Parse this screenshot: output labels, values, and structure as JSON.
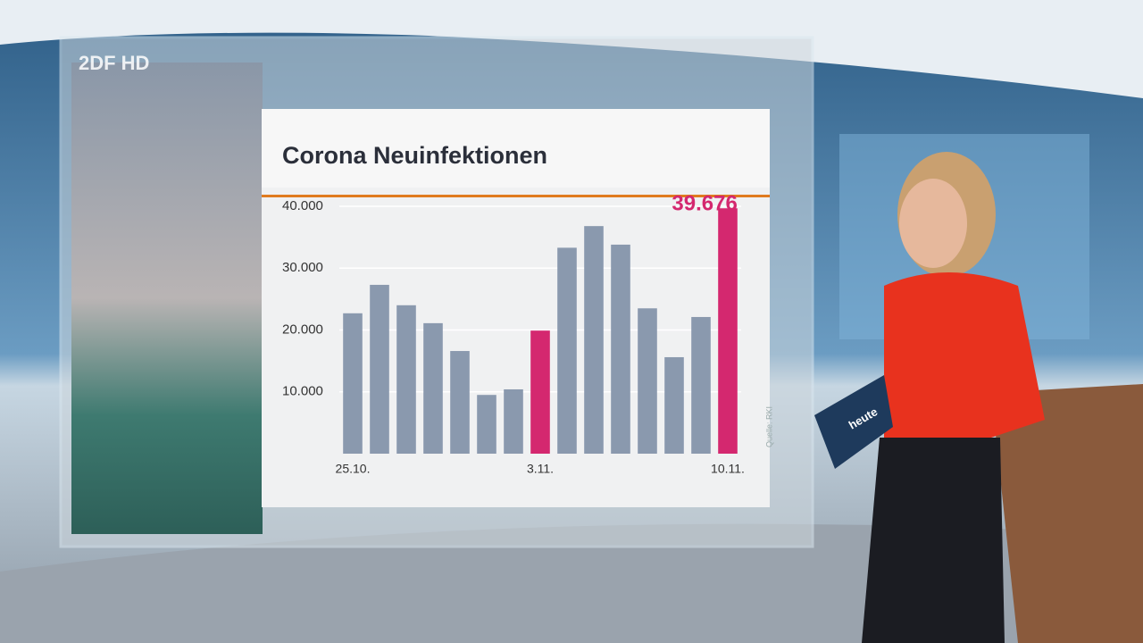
{
  "logo": "2DF HD",
  "card_label": "heute",
  "chart_data": {
    "type": "bar",
    "title": "Corona Neuinfektionen",
    "source": "Quelle: RKI",
    "categories": [
      "25.10.",
      null,
      null,
      null,
      null,
      null,
      null,
      "3.11.",
      null,
      null,
      null,
      null,
      null,
      null,
      "10.11."
    ],
    "values": [
      22700,
      27300,
      24000,
      21100,
      16600,
      9500,
      10400,
      19900,
      33300,
      36800,
      33800,
      23500,
      15600,
      22100,
      39676
    ],
    "value_labels": [
      null,
      null,
      null,
      null,
      null,
      null,
      null,
      null,
      null,
      null,
      null,
      null,
      null,
      null,
      "39.676"
    ],
    "colors": [
      "#8a99ae",
      "#8a99ae",
      "#8a99ae",
      "#8a99ae",
      "#8a99ae",
      "#8a99ae",
      "#8a99ae",
      "#d4286f",
      "#8a99ae",
      "#8a99ae",
      "#8a99ae",
      "#8a99ae",
      "#8a99ae",
      "#8a99ae",
      "#d4286f"
    ],
    "ylim": [
      0,
      40000
    ],
    "yticks": [
      {
        "value": 10000,
        "label": "10.000"
      },
      {
        "value": 20000,
        "label": "20.000"
      },
      {
        "value": 30000,
        "label": "30.000"
      },
      {
        "value": 40000,
        "label": "40.000"
      }
    ],
    "grid": true
  }
}
